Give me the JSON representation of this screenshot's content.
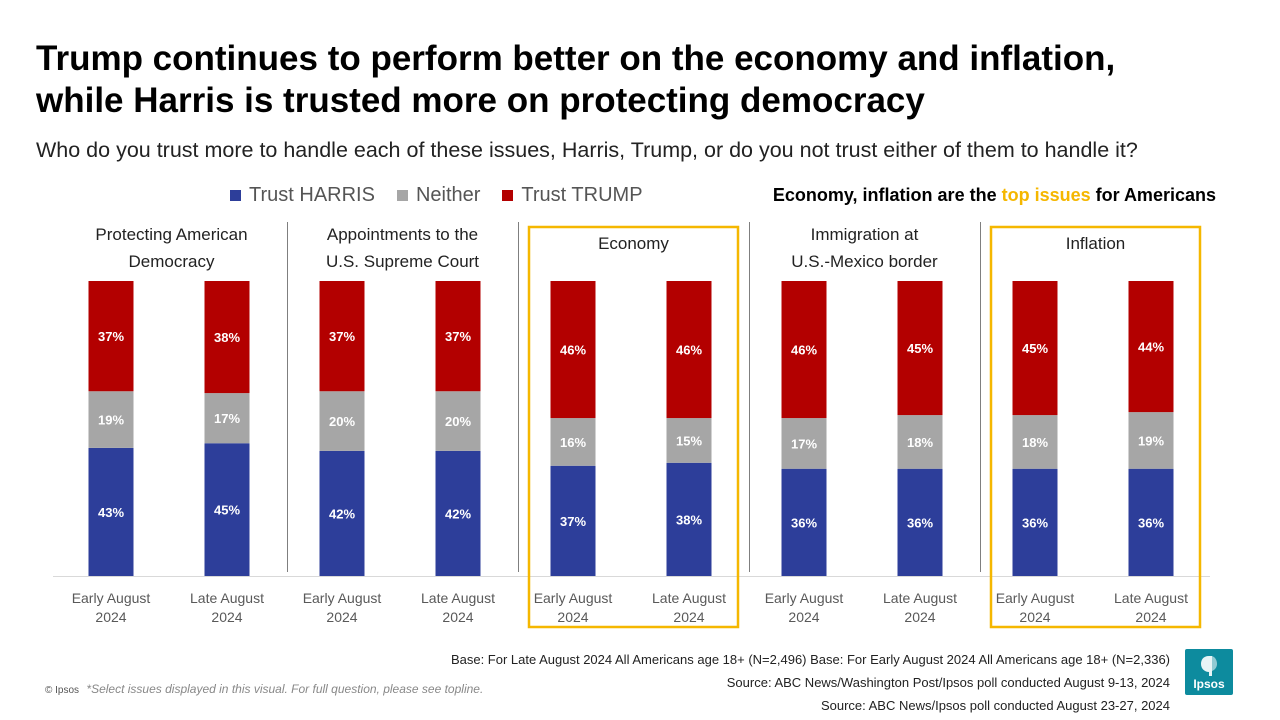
{
  "title_line1": "Trump continues to perform better on the economy and inflation,",
  "title_line2": "while Harris is trusted more on protecting democracy",
  "subtitle": "Who do you trust more to handle each of these issues, Harris, Trump, or do you not trust either of them to handle it?",
  "legend": [
    {
      "label": "Trust HARRIS",
      "color": "#2d3e9a"
    },
    {
      "label": "Neither",
      "color": "#a6a6a6"
    },
    {
      "label": "Trust TRUMP",
      "color": "#b30000"
    }
  ],
  "callout": {
    "pre": "Economy, inflation are the ",
    "highlight": "top issues",
    "post": " for Americans",
    "highlight_color": "#f5b700"
  },
  "chart_data": {
    "type": "bar",
    "stacked": true,
    "unit": "%",
    "series_order": [
      "Trust HARRIS",
      "Neither",
      "Trust TRUMP"
    ],
    "colors": {
      "Trust HARRIS": "#2d3e9a",
      "Neither": "#a6a6a6",
      "Trust TRUMP": "#b30000"
    },
    "highlighted_groups": [
      "Economy",
      "Inflation"
    ],
    "highlight_color": "#f5b700",
    "groups": [
      {
        "title": [
          "Protecting American",
          "Democracy"
        ],
        "bars": [
          {
            "label": [
              "Early August",
              "2024"
            ],
            "values": [
              43,
              19,
              37
            ]
          },
          {
            "label": [
              "Late August",
              "2024"
            ],
            "values": [
              45,
              17,
              38
            ]
          }
        ]
      },
      {
        "title": [
          "Appointments to the",
          "U.S. Supreme Court"
        ],
        "bars": [
          {
            "label": [
              "Early August",
              "2024"
            ],
            "values": [
              42,
              20,
              37
            ]
          },
          {
            "label": [
              "Late August",
              "2024"
            ],
            "values": [
              42,
              20,
              37
            ]
          }
        ]
      },
      {
        "title": [
          "Economy"
        ],
        "bars": [
          {
            "label": [
              "Early August",
              "2024"
            ],
            "values": [
              37,
              16,
              46
            ]
          },
          {
            "label": [
              "Late August",
              "2024"
            ],
            "values": [
              38,
              15,
              46
            ]
          }
        ]
      },
      {
        "title": [
          "Immigration at",
          "U.S.-Mexico border"
        ],
        "bars": [
          {
            "label": [
              "Early August",
              "2024"
            ],
            "values": [
              36,
              17,
              46
            ]
          },
          {
            "label": [
              "Late August",
              "2024"
            ],
            "values": [
              36,
              18,
              45
            ]
          }
        ]
      },
      {
        "title": [
          "Inflation"
        ],
        "bars": [
          {
            "label": [
              "Early August",
              "2024"
            ],
            "values": [
              36,
              18,
              45
            ]
          },
          {
            "label": [
              "Late August",
              "2024"
            ],
            "values": [
              36,
              19,
              44
            ]
          }
        ]
      }
    ]
  },
  "footer": {
    "copyright": "© Ipsos",
    "note": "*Select issues displayed in this visual. For full question, please see topline.",
    "base": "Base: For Late August 2024 All Americans age 18+ (N=2,496) Base: For Early August 2024 All Americans age 18+ (N=2,336)",
    "source1": "Source: ABC News/Washington Post/Ipsos poll conducted August 9-13, 2024",
    "source2": "Source: ABC News/Ipsos poll conducted August 23-27, 2024"
  },
  "logo_text": "Ipsos",
  "logo_color": "#0d8b9e"
}
